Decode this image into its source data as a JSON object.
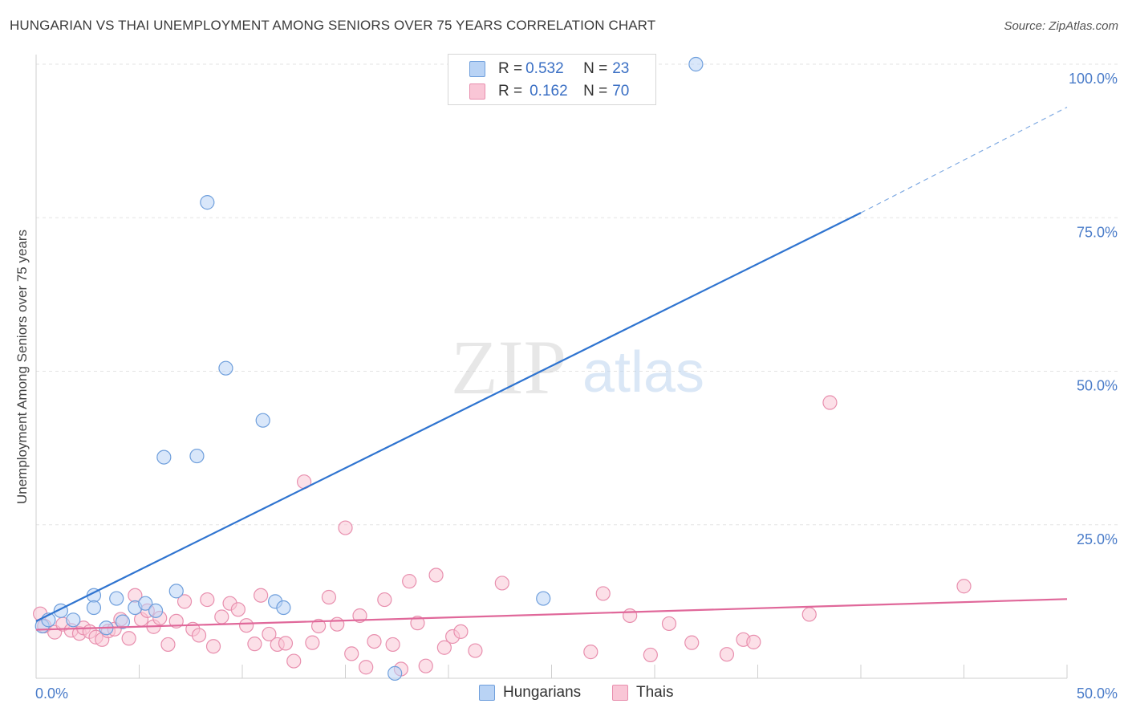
{
  "header": {
    "title": "HUNGARIAN VS THAI UNEMPLOYMENT AMONG SENIORS OVER 75 YEARS CORRELATION CHART",
    "source": "Source: ZipAtlas.com"
  },
  "watermark": {
    "zip": "ZIP",
    "atlas": "atlas"
  },
  "legend": {
    "rows": [
      {
        "r_label": "R = ",
        "r_value": "0.532",
        "n_label": "N = ",
        "n_value": "23"
      },
      {
        "r_label": "R = ",
        "r_value": "0.162",
        "n_label": "N = ",
        "n_value": "70"
      }
    ]
  },
  "colors": {
    "hungarian_fill": "#b9d3f5",
    "hungarian_stroke": "#6f9fdc",
    "hungarian_line": "#2f74d0",
    "thai_fill": "#f9c6d6",
    "thai_stroke": "#e88fae",
    "thai_line": "#e0689a",
    "grid": "#e3e3e3",
    "axis_text": "#4a7cc9"
  },
  "chart_data": {
    "type": "scatter",
    "title": "HUNGARIAN VS THAI UNEMPLOYMENT AMONG SENIORS OVER 75 YEARS CORRELATION CHART",
    "xlabel": "",
    "ylabel": "Unemployment Among Seniors over 75 years",
    "xlim": [
      0,
      50
    ],
    "ylim": [
      0,
      100
    ],
    "x_tick_labels": [
      "0.0%",
      "50.0%"
    ],
    "y_tick_labels": [
      "100.0%",
      "75.0%",
      "50.0%",
      "25.0%"
    ],
    "y_tick_values": [
      100,
      75,
      50,
      25
    ],
    "grid": true,
    "legend_position": "top-center",
    "series": [
      {
        "name": "Hungarians",
        "r": 0.532,
        "n": 23,
        "points": [
          [
            0.3,
            8.5
          ],
          [
            0.6,
            9.5
          ],
          [
            1.2,
            11.0
          ],
          [
            1.8,
            9.5
          ],
          [
            2.8,
            13.5
          ],
          [
            2.8,
            11.5
          ],
          [
            3.4,
            8.2
          ],
          [
            3.9,
            13.0
          ],
          [
            4.2,
            9.2
          ],
          [
            4.8,
            11.5
          ],
          [
            5.3,
            12.2
          ],
          [
            5.8,
            11.0
          ],
          [
            6.2,
            36.0
          ],
          [
            6.8,
            14.2
          ],
          [
            7.8,
            36.2
          ],
          [
            8.3,
            77.5
          ],
          [
            9.2,
            50.5
          ],
          [
            11.0,
            42.0
          ],
          [
            11.6,
            12.5
          ],
          [
            12.0,
            11.5
          ],
          [
            17.4,
            0.8
          ],
          [
            24.6,
            13.0
          ],
          [
            32.0,
            100.0
          ]
        ],
        "trend": {
          "x0": 0,
          "y0": 9.3,
          "x1": 40,
          "y1": 75.8,
          "dash_x1": 50,
          "dash_y1": 93.0
        }
      },
      {
        "name": "Thais",
        "r": 0.162,
        "n": 70,
        "points": [
          [
            0.2,
            10.5
          ],
          [
            0.4,
            8.5
          ],
          [
            0.9,
            7.5
          ],
          [
            1.3,
            8.8
          ],
          [
            1.7,
            7.8
          ],
          [
            2.1,
            7.3
          ],
          [
            2.3,
            8.2
          ],
          [
            2.6,
            7.6
          ],
          [
            2.9,
            6.7
          ],
          [
            3.2,
            6.3
          ],
          [
            3.5,
            7.7
          ],
          [
            3.8,
            8.0
          ],
          [
            4.1,
            9.6
          ],
          [
            4.5,
            6.5
          ],
          [
            4.8,
            13.5
          ],
          [
            5.1,
            9.6
          ],
          [
            5.4,
            11.0
          ],
          [
            5.7,
            8.4
          ],
          [
            6.0,
            9.8
          ],
          [
            6.4,
            5.5
          ],
          [
            6.8,
            9.3
          ],
          [
            7.2,
            12.5
          ],
          [
            7.6,
            8.0
          ],
          [
            7.9,
            7.0
          ],
          [
            8.3,
            12.8
          ],
          [
            8.6,
            5.2
          ],
          [
            9.0,
            10.0
          ],
          [
            9.4,
            12.2
          ],
          [
            9.8,
            11.2
          ],
          [
            10.2,
            8.6
          ],
          [
            10.6,
            5.6
          ],
          [
            10.9,
            13.5
          ],
          [
            11.3,
            7.2
          ],
          [
            11.7,
            5.5
          ],
          [
            12.1,
            5.7
          ],
          [
            12.5,
            2.8
          ],
          [
            13.0,
            32.0
          ],
          [
            13.4,
            5.8
          ],
          [
            13.7,
            8.5
          ],
          [
            14.2,
            13.2
          ],
          [
            14.6,
            8.8
          ],
          [
            15.0,
            24.5
          ],
          [
            15.3,
            4.0
          ],
          [
            15.7,
            10.2
          ],
          [
            16.0,
            1.8
          ],
          [
            16.4,
            6.0
          ],
          [
            16.9,
            12.8
          ],
          [
            17.3,
            5.5
          ],
          [
            17.7,
            1.5
          ],
          [
            18.1,
            15.8
          ],
          [
            18.5,
            9.0
          ],
          [
            18.9,
            2.0
          ],
          [
            19.4,
            16.8
          ],
          [
            19.8,
            5.0
          ],
          [
            20.2,
            6.8
          ],
          [
            20.6,
            7.6
          ],
          [
            21.3,
            4.5
          ],
          [
            22.6,
            15.5
          ],
          [
            26.9,
            4.3
          ],
          [
            27.5,
            13.8
          ],
          [
            28.8,
            10.2
          ],
          [
            29.8,
            3.8
          ],
          [
            30.7,
            8.9
          ],
          [
            31.8,
            5.8
          ],
          [
            33.5,
            3.9
          ],
          [
            34.3,
            6.3
          ],
          [
            34.8,
            5.9
          ],
          [
            37.5,
            10.4
          ],
          [
            38.5,
            44.9
          ],
          [
            45.0,
            15.0
          ]
        ],
        "trend": {
          "x0": 0,
          "y0": 7.9,
          "x1": 50,
          "y1": 12.9
        }
      }
    ]
  },
  "bottom_legend": {
    "items": [
      "Hungarians",
      "Thais"
    ]
  }
}
